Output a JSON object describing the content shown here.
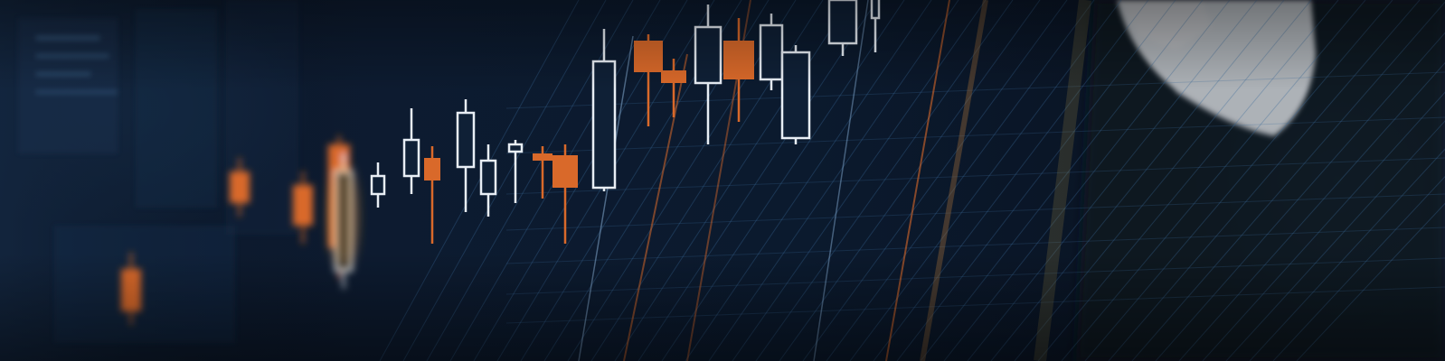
{
  "scene": {
    "description_kind": "photo-composite",
    "palette": {
      "background": "#0b1628",
      "grid": "#3a6a9a",
      "bull_candle": "#e8eef5",
      "bear_candle": "#d9692a",
      "amber_glow": "#f0a030",
      "shirt": "#c9ccd1",
      "suit": "#141c28"
    },
    "icons": [
      "candlestick-chart-graphic",
      "person-hand-silhouette"
    ]
  }
}
